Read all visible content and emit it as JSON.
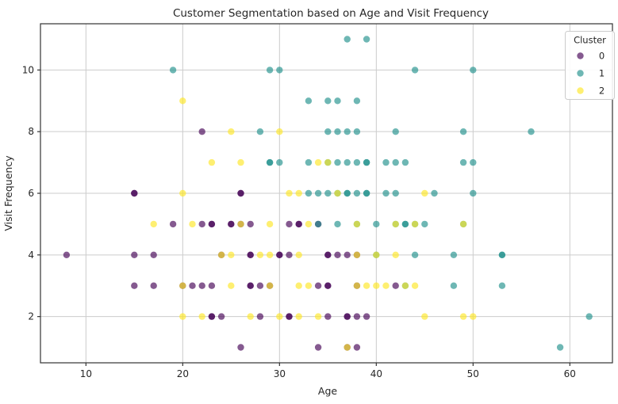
{
  "figure": {
    "title": "Customer Segmentation based on Age and Visit Frequency",
    "xlabel": "Age",
    "ylabel": "Visit Frequency",
    "legend_title": "Cluster"
  },
  "chart_data": {
    "type": "scatter",
    "title": "Customer Segmentation based on Age and Visit Frequency",
    "xlabel": "Age",
    "ylabel": "Visit Frequency",
    "xlim": [
      5.3,
      64.4
    ],
    "ylim": [
      0.5,
      11.5
    ],
    "xticks": [
      10,
      20,
      30,
      40,
      50,
      60
    ],
    "yticks": [
      2,
      4,
      6,
      8,
      10
    ],
    "grid": true,
    "marker": {
      "radius": 4.2,
      "opacity": 0.65
    },
    "colors": {
      "grid": "#cccccc",
      "frame": "#333333",
      "background": "#ffffff"
    },
    "legend": {
      "title": "Cluster",
      "position": "upper right",
      "entries": [
        "0",
        "1",
        "2"
      ]
    },
    "series": [
      {
        "name": "0",
        "color": "#440154",
        "points": [
          [
            22,
            8
          ],
          [
            15,
            6
          ],
          [
            15,
            6
          ],
          [
            26,
            6
          ],
          [
            26,
            6
          ],
          [
            19,
            5
          ],
          [
            22,
            5
          ],
          [
            23,
            5
          ],
          [
            23,
            5
          ],
          [
            25,
            5
          ],
          [
            25,
            5
          ],
          [
            26,
            5
          ],
          [
            27,
            5
          ],
          [
            31,
            5
          ],
          [
            32,
            5
          ],
          [
            32,
            5
          ],
          [
            34,
            5
          ],
          [
            8,
            4
          ],
          [
            15,
            4
          ],
          [
            17,
            4
          ],
          [
            24,
            4
          ],
          [
            27,
            4
          ],
          [
            27,
            4
          ],
          [
            30,
            4
          ],
          [
            30,
            4
          ],
          [
            31,
            4
          ],
          [
            35,
            4
          ],
          [
            35,
            4
          ],
          [
            36,
            4
          ],
          [
            37,
            4
          ],
          [
            38,
            4
          ],
          [
            15,
            3
          ],
          [
            17,
            3
          ],
          [
            20,
            3
          ],
          [
            21,
            3
          ],
          [
            22,
            3
          ],
          [
            23,
            3
          ],
          [
            27,
            3
          ],
          [
            27,
            3
          ],
          [
            28,
            3
          ],
          [
            29,
            3
          ],
          [
            34,
            3
          ],
          [
            35,
            3
          ],
          [
            35,
            3
          ],
          [
            38,
            3
          ],
          [
            42,
            3
          ],
          [
            23,
            2
          ],
          [
            23,
            2
          ],
          [
            24,
            2
          ],
          [
            28,
            2
          ],
          [
            31,
            2
          ],
          [
            31,
            2
          ],
          [
            35,
            2
          ],
          [
            37,
            2
          ],
          [
            37,
            2
          ],
          [
            38,
            2
          ],
          [
            39,
            2
          ],
          [
            26,
            1
          ],
          [
            34,
            1
          ],
          [
            37,
            1
          ],
          [
            38,
            1
          ]
        ]
      },
      {
        "name": "1",
        "color": "#21918c",
        "points": [
          [
            37,
            11
          ],
          [
            39,
            11
          ],
          [
            19,
            10
          ],
          [
            29,
            10
          ],
          [
            30,
            10
          ],
          [
            44,
            10
          ],
          [
            50,
            10
          ],
          [
            33,
            9
          ],
          [
            35,
            9
          ],
          [
            36,
            9
          ],
          [
            38,
            9
          ],
          [
            28,
            8
          ],
          [
            35,
            8
          ],
          [
            36,
            8
          ],
          [
            37,
            8
          ],
          [
            38,
            8
          ],
          [
            42,
            8
          ],
          [
            49,
            8
          ],
          [
            56,
            8
          ],
          [
            29,
            7
          ],
          [
            29,
            7
          ],
          [
            30,
            7
          ],
          [
            33,
            7
          ],
          [
            35,
            7
          ],
          [
            36,
            7
          ],
          [
            37,
            7
          ],
          [
            38,
            7
          ],
          [
            39,
            7
          ],
          [
            39,
            7
          ],
          [
            41,
            7
          ],
          [
            42,
            7
          ],
          [
            43,
            7
          ],
          [
            49,
            7
          ],
          [
            50,
            7
          ],
          [
            33,
            6
          ],
          [
            34,
            6
          ],
          [
            35,
            6
          ],
          [
            36,
            6
          ],
          [
            37,
            6
          ],
          [
            37,
            6
          ],
          [
            38,
            6
          ],
          [
            39,
            6
          ],
          [
            39,
            6
          ],
          [
            41,
            6
          ],
          [
            42,
            6
          ],
          [
            46,
            6
          ],
          [
            50,
            6
          ],
          [
            34,
            5
          ],
          [
            36,
            5
          ],
          [
            38,
            5
          ],
          [
            40,
            5
          ],
          [
            42,
            5
          ],
          [
            43,
            5
          ],
          [
            43,
            5
          ],
          [
            44,
            5
          ],
          [
            45,
            5
          ],
          [
            49,
            5
          ],
          [
            40,
            4
          ],
          [
            44,
            4
          ],
          [
            48,
            4
          ],
          [
            53,
            4
          ],
          [
            53,
            4
          ],
          [
            43,
            3
          ],
          [
            48,
            3
          ],
          [
            53,
            3
          ],
          [
            62,
            2
          ],
          [
            59,
            1
          ]
        ]
      },
      {
        "name": "2",
        "color": "#fde725",
        "points": [
          [
            20,
            9
          ],
          [
            25,
            8
          ],
          [
            30,
            8
          ],
          [
            23,
            7
          ],
          [
            26,
            7
          ],
          [
            34,
            7
          ],
          [
            35,
            7
          ],
          [
            20,
            6
          ],
          [
            31,
            6
          ],
          [
            32,
            6
          ],
          [
            36,
            6
          ],
          [
            45,
            6
          ],
          [
            17,
            5
          ],
          [
            21,
            5
          ],
          [
            26,
            5
          ],
          [
            29,
            5
          ],
          [
            33,
            5
          ],
          [
            38,
            5
          ],
          [
            42,
            5
          ],
          [
            44,
            5
          ],
          [
            49,
            5
          ],
          [
            24,
            4
          ],
          [
            25,
            4
          ],
          [
            28,
            4
          ],
          [
            29,
            4
          ],
          [
            32,
            4
          ],
          [
            38,
            4
          ],
          [
            40,
            4
          ],
          [
            42,
            4
          ],
          [
            20,
            3
          ],
          [
            25,
            3
          ],
          [
            29,
            3
          ],
          [
            32,
            3
          ],
          [
            33,
            3
          ],
          [
            38,
            3
          ],
          [
            39,
            3
          ],
          [
            40,
            3
          ],
          [
            41,
            3
          ],
          [
            43,
            3
          ],
          [
            44,
            3
          ],
          [
            20,
            2
          ],
          [
            22,
            2
          ],
          [
            27,
            2
          ],
          [
            30,
            2
          ],
          [
            32,
            2
          ],
          [
            34,
            2
          ],
          [
            45,
            2
          ],
          [
            49,
            2
          ],
          [
            50,
            2
          ],
          [
            37,
            1
          ]
        ]
      }
    ]
  }
}
